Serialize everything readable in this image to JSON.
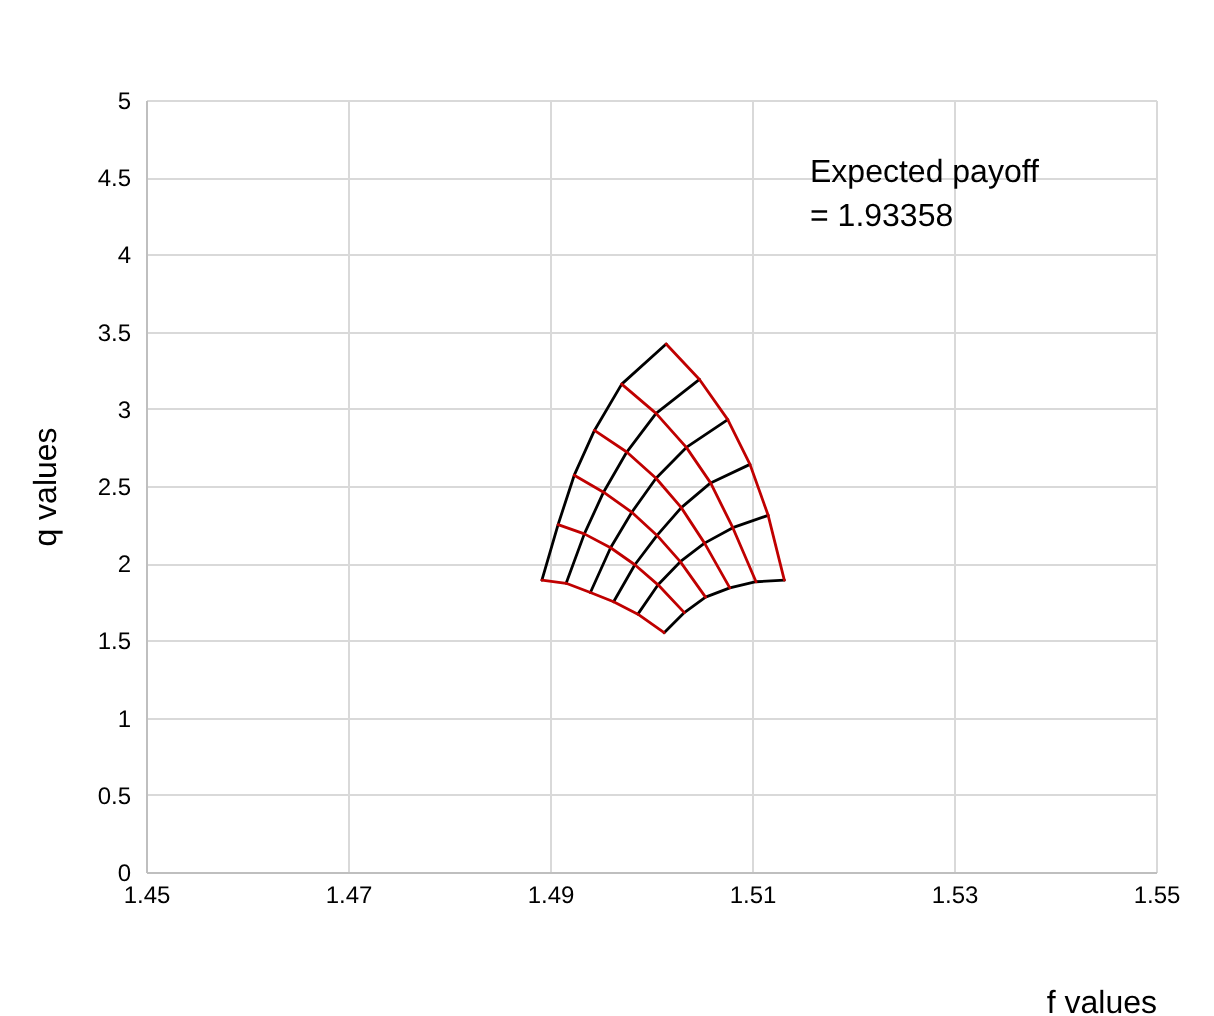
{
  "chart_data": {
    "type": "line",
    "xlabel": "f values",
    "ylabel": "q values",
    "xlim": [
      1.45,
      1.55
    ],
    "xticks": [
      1.45,
      1.47,
      1.49,
      1.51,
      1.53,
      1.55
    ],
    "ylim": [
      0,
      5
    ],
    "yticks": [
      0,
      0.5,
      1,
      1.5,
      2,
      2.5,
      3,
      3.5,
      4,
      4.5,
      5
    ],
    "grid": true,
    "legend": false,
    "marker": "none",
    "line_style": "solid",
    "annotations": [
      "Expected payoff\n= 1.93358"
    ],
    "series": [
      {
        "color": "#000000",
        "x": [
          1.4892,
          1.4908,
          1.4924,
          1.4944,
          1.4971,
          1.5015
        ],
        "values": [
          1.89,
          2.25,
          2.57,
          2.86,
          3.16,
          3.42
        ]
      },
      {
        "color": "#000000",
        "x": [
          1.4916,
          1.4934,
          1.4953,
          1.4976,
          1.5005,
          1.5048
        ],
        "values": [
          1.87,
          2.19,
          2.46,
          2.72,
          2.97,
          3.19
        ]
      },
      {
        "color": "#000000",
        "x": [
          1.494,
          1.496,
          1.4981,
          1.5005,
          1.5035,
          1.5076
        ],
        "values": [
          1.81,
          2.1,
          2.33,
          2.55,
          2.75,
          2.93
        ]
      },
      {
        "color": "#000000",
        "x": [
          1.4963,
          1.4984,
          1.5006,
          1.503,
          1.5059,
          1.5098
        ],
        "values": [
          1.75,
          1.99,
          2.18,
          2.36,
          2.52,
          2.64
        ]
      },
      {
        "color": "#000000",
        "x": [
          1.4987,
          1.5007,
          1.5029,
          1.5053,
          1.5081,
          1.5116
        ],
        "values": [
          1.67,
          1.86,
          2.01,
          2.13,
          2.23,
          2.31
        ]
      },
      {
        "color": "#000000",
        "x": [
          1.5013,
          1.5033,
          1.5054,
          1.5078,
          1.5104,
          1.5132
        ],
        "values": [
          1.55,
          1.68,
          1.78,
          1.84,
          1.88,
          1.89
        ]
      },
      {
        "color": "#c00000",
        "x": [
          1.4892,
          1.4916,
          1.494,
          1.4963,
          1.4987,
          1.5013
        ],
        "values": [
          1.89,
          1.87,
          1.81,
          1.75,
          1.67,
          1.55
        ]
      },
      {
        "color": "#c00000",
        "x": [
          1.4908,
          1.4934,
          1.496,
          1.4984,
          1.5007,
          1.5033
        ],
        "values": [
          2.25,
          2.19,
          2.1,
          1.99,
          1.86,
          1.68
        ]
      },
      {
        "color": "#c00000",
        "x": [
          1.4924,
          1.4953,
          1.4981,
          1.5006,
          1.5029,
          1.5054
        ],
        "values": [
          2.57,
          2.46,
          2.33,
          2.18,
          2.01,
          1.78
        ]
      },
      {
        "color": "#c00000",
        "x": [
          1.4944,
          1.4976,
          1.5005,
          1.503,
          1.5053,
          1.5078
        ],
        "values": [
          2.86,
          2.72,
          2.55,
          2.36,
          2.13,
          1.84
        ]
      },
      {
        "color": "#c00000",
        "x": [
          1.4971,
          1.5005,
          1.5035,
          1.5059,
          1.5081,
          1.5104
        ],
        "values": [
          3.16,
          2.97,
          2.75,
          2.52,
          2.23,
          1.88
        ]
      },
      {
        "color": "#c00000",
        "x": [
          1.5015,
          1.5048,
          1.5076,
          1.5098,
          1.5116,
          1.5132
        ],
        "values": [
          3.42,
          3.19,
          2.93,
          2.64,
          2.31,
          1.89
        ]
      }
    ]
  }
}
